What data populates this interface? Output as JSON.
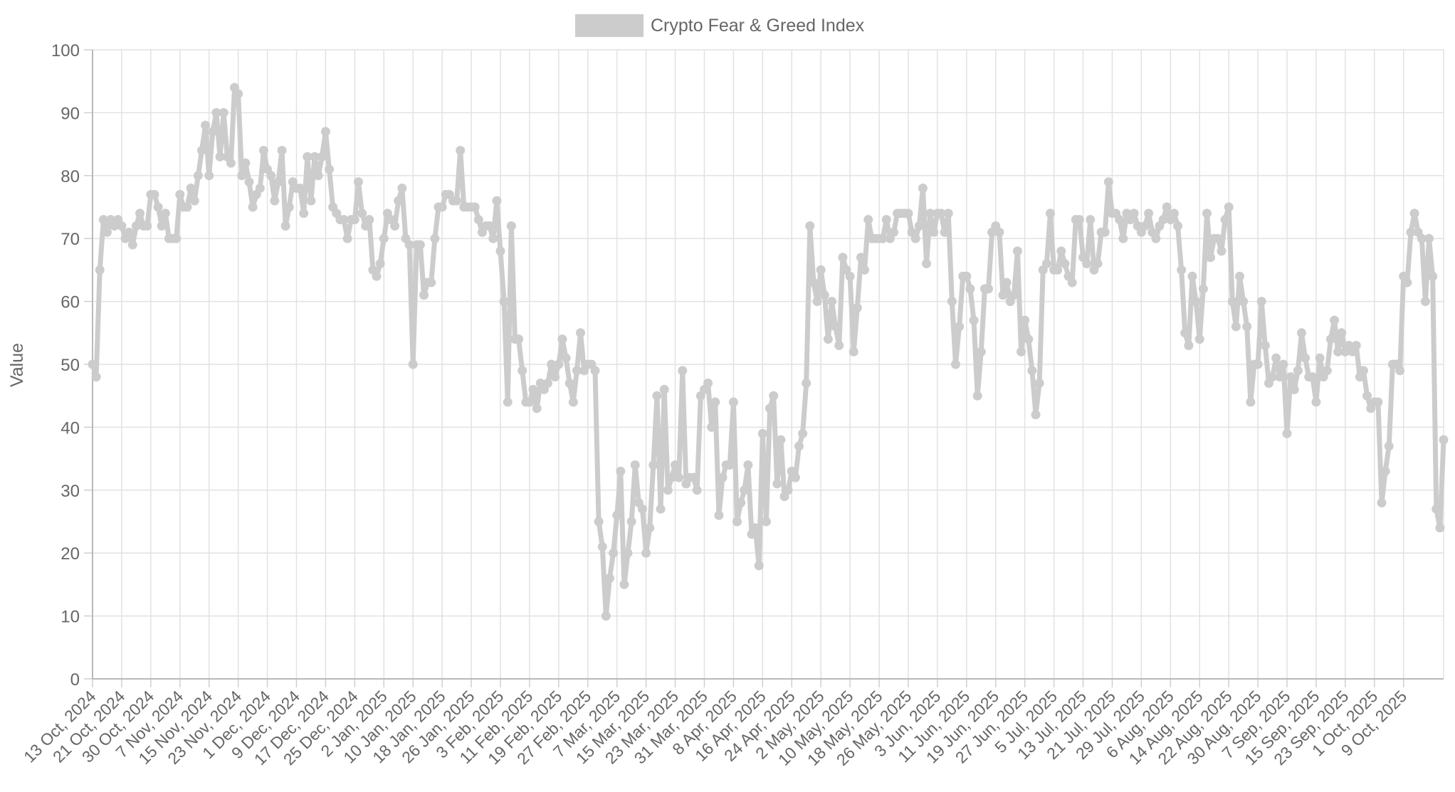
{
  "chart_data": {
    "type": "line",
    "legend_label": "Crypto Fear & Greed Index",
    "legend_position": "top-center",
    "ylabel": "Value",
    "xlabel": "",
    "ylim": [
      0,
      100
    ],
    "y_ticks": [
      "0",
      "10",
      "20",
      "30",
      "40",
      "50",
      "60",
      "70",
      "80",
      "90",
      "100"
    ],
    "grid": true,
    "series_color": "#cccccc",
    "x_ticks": [
      "13 Oct, 2024",
      "21 Oct, 2024",
      "30 Oct, 2024",
      "7 Nov, 2024",
      "15 Nov, 2024",
      "23 Nov, 2024",
      "1 Dec, 2024",
      "9 Dec, 2024",
      "17 Dec, 2024",
      "25 Dec, 2024",
      "2 Jan, 2025",
      "10 Jan, 2025",
      "18 Jan, 2025",
      "26 Jan, 2025",
      "3 Feb, 2025",
      "11 Feb, 2025",
      "19 Feb, 2025",
      "27 Feb, 2025",
      "7 Mar, 2025",
      "15 Mar, 2025",
      "23 Mar, 2025",
      "31 Mar, 2025",
      "8 Apr, 2025",
      "16 Apr, 2025",
      "24 Apr, 2025",
      "2 May, 2025",
      "10 May, 2025",
      "18 May, 2025",
      "26 May, 2025",
      "3 Jun, 2025",
      "11 Jun, 2025",
      "19 Jun, 2025",
      "27 Jun, 2025",
      "5 Jul, 2025",
      "13 Jul, 2025",
      "21 Jul, 2025",
      "29 Jul, 2025",
      "6 Aug, 2025",
      "14 Aug, 2025",
      "22 Aug, 2025",
      "30 Aug, 2025",
      "7 Sep, 2025",
      "15 Sep, 2025",
      "23 Sep, 2025",
      "1 Oct, 2025",
      "9 Oct, 2025"
    ],
    "values": [
      50,
      48,
      65,
      73,
      71,
      73,
      72,
      73,
      72,
      70,
      71,
      69,
      72,
      74,
      72,
      72,
      77,
      77,
      75,
      72,
      74,
      70,
      70,
      70,
      77,
      75,
      75,
      78,
      76,
      80,
      84,
      88,
      80,
      87,
      90,
      83,
      90,
      83,
      82,
      94,
      93,
      80,
      82,
      79,
      75,
      77,
      78,
      84,
      81,
      80,
      76,
      79,
      84,
      72,
      75,
      79,
      78,
      78,
      74,
      83,
      76,
      83,
      80,
      83,
      87,
      81,
      75,
      74,
      73,
      73,
      70,
      73,
      73,
      79,
      74,
      72,
      73,
      65,
      64,
      66,
      70,
      74,
      73,
      72,
      76,
      78,
      70,
      69,
      50,
      69,
      69,
      61,
      63,
      63,
      70,
      75,
      75,
      77,
      77,
      76,
      76,
      84,
      75,
      75,
      75,
      75,
      73,
      71,
      72,
      72,
      70,
      76,
      68,
      60,
      44,
      72,
      54,
      54,
      49,
      44,
      44,
      46,
      43,
      47,
      46,
      47,
      50,
      48,
      50,
      54,
      51,
      47,
      44,
      49,
      55,
      49,
      50,
      50,
      49,
      25,
      21,
      10,
      16,
      20,
      26,
      33,
      15,
      20,
      25,
      34,
      28,
      27,
      20,
      24,
      34,
      45,
      27,
      46,
      30,
      32,
      34,
      32,
      49,
      31,
      32,
      32,
      30,
      45,
      46,
      47,
      40,
      44,
      26,
      32,
      34,
      34,
      44,
      25,
      28,
      30,
      34,
      23,
      24,
      18,
      39,
      25,
      43,
      45,
      31,
      38,
      29,
      30,
      33,
      32,
      37,
      39,
      47,
      72,
      63,
      60,
      65,
      61,
      54,
      60,
      56,
      53,
      67,
      65,
      64,
      52,
      59,
      67,
      65,
      73,
      70,
      70,
      70,
      70,
      73,
      70,
      71,
      74,
      74,
      74,
      74,
      71,
      70,
      72,
      78,
      66,
      74,
      71,
      74,
      74,
      71,
      74,
      60,
      50,
      56,
      64,
      64,
      62,
      57,
      45,
      52,
      62,
      62,
      71,
      72,
      71,
      61,
      63,
      60,
      61,
      68,
      52,
      57,
      54,
      49,
      42,
      47,
      65,
      66,
      74,
      65,
      65,
      68,
      66,
      64,
      63,
      73,
      73,
      67,
      66,
      73,
      65,
      66,
      71,
      71,
      79,
      74,
      74,
      73,
      70,
      74,
      73,
      74,
      72,
      71,
      72,
      74,
      71,
      70,
      72,
      73,
      75,
      73,
      74,
      72,
      65,
      55,
      53,
      64,
      60,
      54,
      62,
      74,
      67,
      70,
      70,
      68,
      73,
      75,
      60,
      56,
      64,
      60,
      56,
      44,
      50,
      50,
      60,
      53,
      47,
      48,
      51,
      48,
      50,
      39,
      48,
      46,
      49,
      55,
      51,
      48,
      48,
      44,
      51,
      48,
      49,
      54,
      57,
      52,
      55,
      52,
      53,
      52,
      53,
      48,
      49,
      45,
      43,
      44,
      44,
      28,
      33,
      37,
      50,
      50,
      49,
      64,
      63,
      71,
      74,
      71,
      70,
      60,
      70,
      64,
      27,
      24,
      38
    ]
  }
}
